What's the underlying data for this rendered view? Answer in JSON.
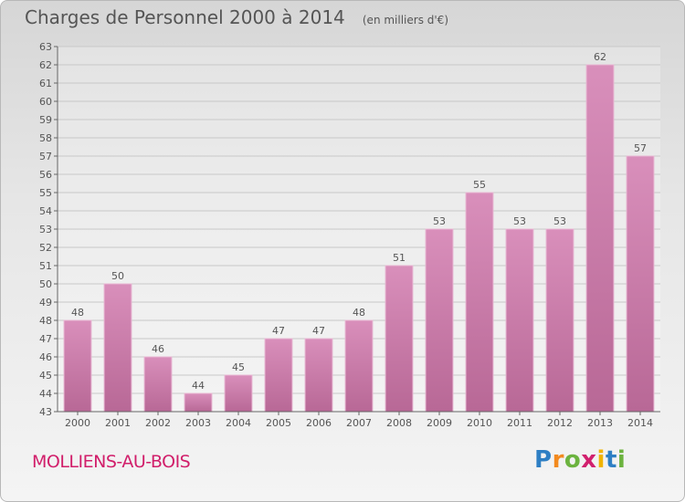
{
  "title": "Charges de Personnel 2000 à 2014",
  "subtitle": "(en milliers d'€)",
  "commune": "MOLLIENS-AU-BOIS",
  "logo": {
    "letters": [
      "P",
      "r",
      "o",
      "x",
      "i",
      "t",
      "i"
    ],
    "colors": [
      "#2e7fc4",
      "#f28a1f",
      "#6cb33f",
      "#d1206e",
      "#f0b400",
      "#2e7fc4",
      "#6cb33f"
    ]
  },
  "colors": {
    "bar": "#d98fbb",
    "bar_dark": "#b86896",
    "text": "#555555",
    "accent": "#d11e6a"
  },
  "chart_data": {
    "type": "bar",
    "title": "Charges de Personnel 2000 à 2014",
    "subtitle": "(en milliers d'€)",
    "categories": [
      "2000",
      "2001",
      "2002",
      "2003",
      "2004",
      "2005",
      "2006",
      "2007",
      "2008",
      "2009",
      "2010",
      "2011",
      "2012",
      "2013",
      "2014"
    ],
    "values": [
      48,
      50,
      46,
      44,
      45,
      47,
      47,
      48,
      51,
      53,
      55,
      53,
      53,
      62,
      57
    ],
    "xlabel": "",
    "ylabel": "",
    "ylim": [
      43,
      63
    ],
    "yticks": [
      43,
      44,
      45,
      46,
      47,
      48,
      49,
      50,
      51,
      52,
      53,
      54,
      55,
      56,
      57,
      58,
      59,
      60,
      61,
      62,
      63
    ],
    "grid": true,
    "data_labels": true,
    "legend": "none"
  }
}
